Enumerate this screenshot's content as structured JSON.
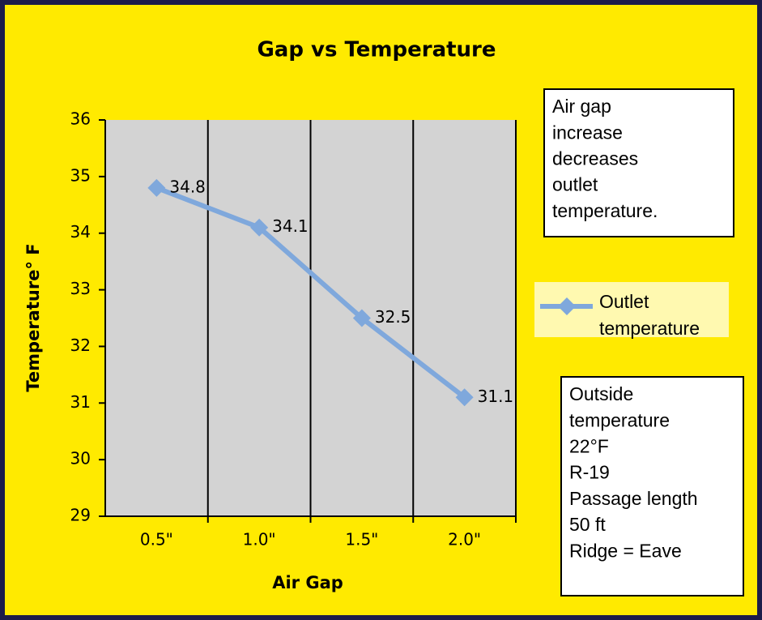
{
  "chart_data": {
    "type": "line",
    "title": "Gap vs Temperature",
    "x_label": "Air Gap",
    "y_label": "Temperature° F",
    "categories": [
      "0.5\"",
      "1.0\"",
      "1.5\"",
      "2.0\""
    ],
    "series": [
      {
        "name": "Outlet temperature",
        "color": "#7fa8dc",
        "values": [
          34.8,
          34.1,
          32.5,
          31.1
        ]
      }
    ],
    "ylim": [
      29,
      36
    ],
    "yticks": [
      29,
      30,
      31,
      32,
      33,
      34,
      35,
      36
    ],
    "grid": "x",
    "legend": "right",
    "annotations": [
      {
        "lines": [
          "Air gap",
          "increase",
          "decreases",
          "outlet",
          "temperature."
        ]
      },
      {
        "lines": [
          "Outside",
          "temperature",
          "22°F",
          "R-19",
          "Passage length",
          "50 ft",
          "Ridge = Eave"
        ]
      }
    ]
  }
}
